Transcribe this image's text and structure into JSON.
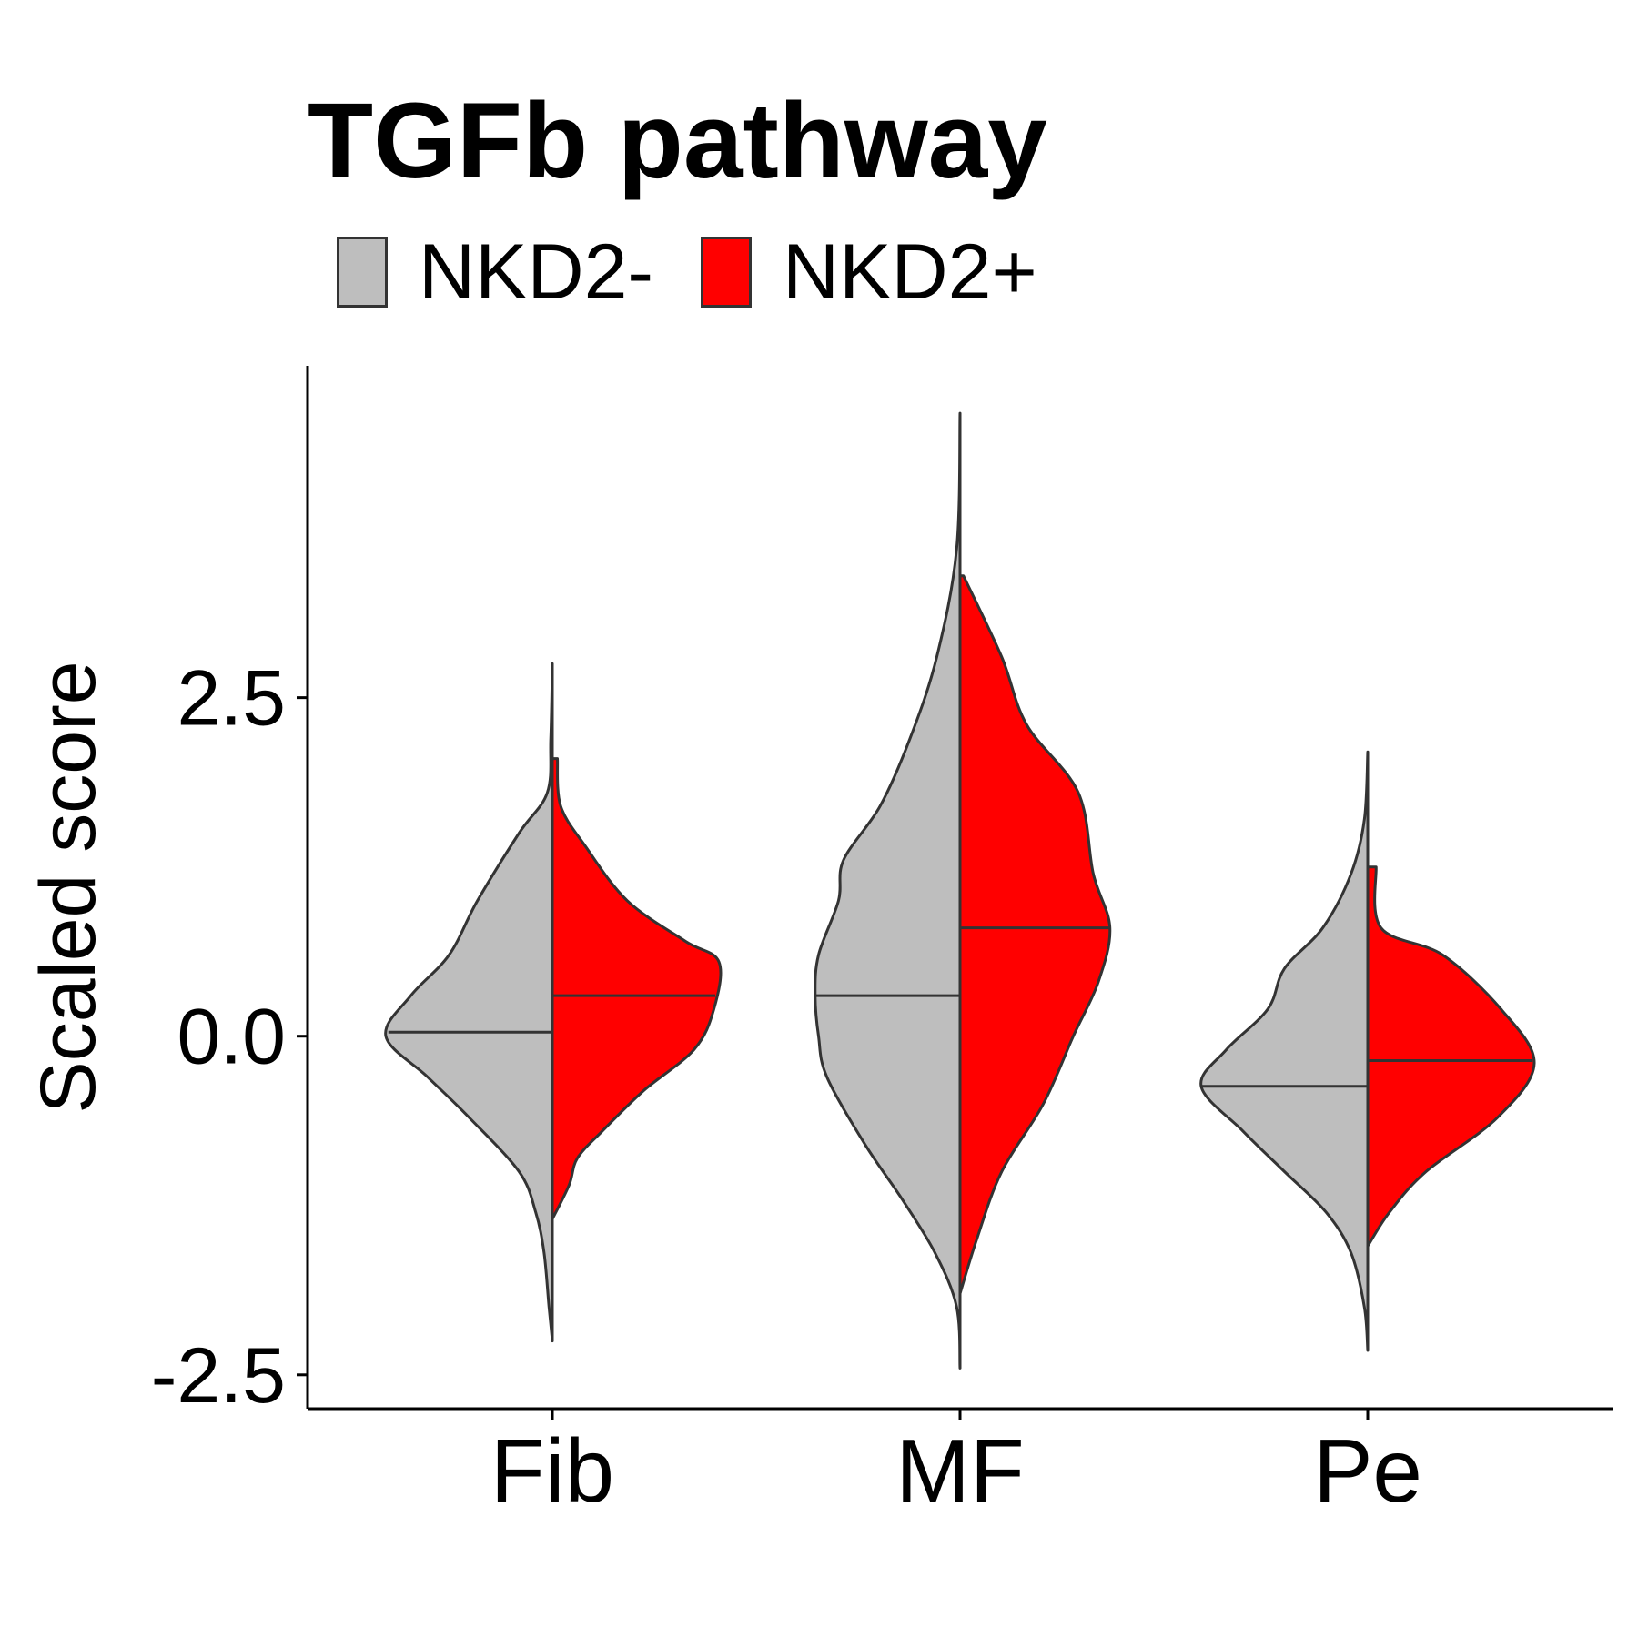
{
  "chart_data": {
    "type": "violin",
    "title": "TGFb pathway",
    "ylabel": "Scaled score",
    "xlabel": "",
    "categories": [
      "Fib",
      "MF",
      "Pe"
    ],
    "ylim": [
      -2.75,
      4.95
    ],
    "yticks": [
      "-2.5",
      "0.0",
      "2.5"
    ],
    "legend": {
      "position": "top",
      "entries": [
        "NKD2-",
        "NKD2+"
      ]
    },
    "grid": false,
    "series": [
      {
        "name": "NKD2-",
        "color": "#bebebe",
        "violins": [
          {
            "category": "Fib",
            "median": 0.03,
            "profile": [
              [
                -2.25,
                0.0
              ],
              [
                -2.0,
                0.02
              ],
              [
                -1.6,
                0.05
              ],
              [
                -1.3,
                0.1
              ],
              [
                -1.0,
                0.2
              ],
              [
                -0.6,
                0.5
              ],
              [
                -0.3,
                0.75
              ],
              [
                0.0,
                1.0
              ],
              [
                0.3,
                0.85
              ],
              [
                0.6,
                0.62
              ],
              [
                1.0,
                0.45
              ],
              [
                1.5,
                0.2
              ],
              [
                1.8,
                0.03
              ],
              [
                2.2,
                0.01
              ],
              [
                2.75,
                0.0
              ]
            ]
          },
          {
            "category": "MF",
            "median": 0.3,
            "profile": [
              [
                -2.45,
                0.0
              ],
              [
                -2.0,
                0.02
              ],
              [
                -1.6,
                0.15
              ],
              [
                -1.2,
                0.35
              ],
              [
                -0.8,
                0.57
              ],
              [
                -0.3,
                0.8
              ],
              [
                0.0,
                0.85
              ],
              [
                0.3,
                0.87
              ],
              [
                0.6,
                0.85
              ],
              [
                1.0,
                0.73
              ],
              [
                1.3,
                0.7
              ],
              [
                1.7,
                0.48
              ],
              [
                2.2,
                0.3
              ],
              [
                2.8,
                0.14
              ],
              [
                3.6,
                0.02
              ],
              [
                4.6,
                0.0
              ]
            ]
          },
          {
            "category": "Pe",
            "median": -0.37,
            "profile": [
              [
                -2.32,
                0.0
              ],
              [
                -2.0,
                0.02
              ],
              [
                -1.6,
                0.1
              ],
              [
                -1.3,
                0.25
              ],
              [
                -1.0,
                0.5
              ],
              [
                -0.7,
                0.75
              ],
              [
                -0.37,
                1.0
              ],
              [
                -0.1,
                0.85
              ],
              [
                0.2,
                0.6
              ],
              [
                0.5,
                0.5
              ],
              [
                0.8,
                0.27
              ],
              [
                1.2,
                0.1
              ],
              [
                1.6,
                0.02
              ],
              [
                2.1,
                0.0
              ]
            ]
          }
        ]
      },
      {
        "name": "NKD2+",
        "color": "#ff0000",
        "violins": [
          {
            "category": "Fib",
            "median": 0.3,
            "profile": [
              [
                -1.35,
                0.0
              ],
              [
                -1.1,
                0.1
              ],
              [
                -0.9,
                0.15
              ],
              [
                -0.7,
                0.3
              ],
              [
                -0.4,
                0.55
              ],
              [
                -0.1,
                0.85
              ],
              [
                0.2,
                0.97
              ],
              [
                0.55,
                1.0
              ],
              [
                0.7,
                0.8
              ],
              [
                1.0,
                0.45
              ],
              [
                1.4,
                0.2
              ],
              [
                1.7,
                0.05
              ],
              [
                2.05,
                0.03
              ]
            ]
          },
          {
            "category": "MF",
            "median": 0.8,
            "profile": [
              [
                -1.9,
                0.0
              ],
              [
                -1.5,
                0.1
              ],
              [
                -1.0,
                0.25
              ],
              [
                -0.5,
                0.5
              ],
              [
                0.0,
                0.68
              ],
              [
                0.4,
                0.83
              ],
              [
                0.8,
                0.9
              ],
              [
                1.2,
                0.8
              ],
              [
                1.8,
                0.71
              ],
              [
                2.3,
                0.4
              ],
              [
                2.8,
                0.25
              ],
              [
                3.4,
                0.02
              ]
            ]
          },
          {
            "category": "Pe",
            "median": -0.18,
            "profile": [
              [
                -1.55,
                0.0
              ],
              [
                -1.3,
                0.13
              ],
              [
                -1.0,
                0.35
              ],
              [
                -0.6,
                0.78
              ],
              [
                -0.2,
                1.0
              ],
              [
                0.2,
                0.8
              ],
              [
                0.6,
                0.45
              ],
              [
                0.8,
                0.08
              ],
              [
                1.25,
                0.05
              ]
            ]
          }
        ]
      }
    ]
  }
}
